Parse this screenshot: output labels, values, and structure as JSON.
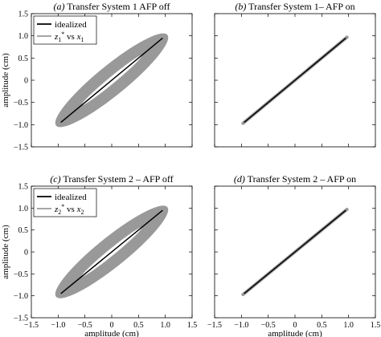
{
  "chart_data": [
    {
      "type": "scatter",
      "title_prefix": "(a)",
      "title": "Transfer System 1  AFP off",
      "xlabel": "",
      "ylabel": "amplitude (cm)",
      "xlim": [
        -1.5,
        1.5
      ],
      "ylim": [
        -1.5,
        1.5
      ],
      "xticks": [],
      "yticks": [
        "−1.5",
        "−1.0",
        "−0.5",
        "0",
        "0.5",
        "1.0",
        "1.5"
      ],
      "legend": {
        "position": "top-left",
        "entries": [
          {
            "label": "idealized",
            "color": "#000000"
          },
          {
            "label": "z1* vs x1",
            "color": "#999999"
          }
        ]
      },
      "series": [
        {
          "name": "idealized",
          "style": "line",
          "x": [
            -0.95,
            0.95
          ],
          "y": [
            -0.95,
            0.95
          ]
        },
        {
          "name": "z1* vs x1",
          "style": "ellipse-band",
          "center": [
            0,
            0
          ],
          "major_axis_angle_deg": 45,
          "x_extent": [
            -1.0,
            1.05
          ],
          "y_extent": [
            -1.0,
            1.05
          ],
          "outer_half_width": 0.3,
          "inner_half_width": 0.07
        }
      ]
    },
    {
      "type": "scatter",
      "title_prefix": "(b)",
      "title": "Transfer System 1– AFP on",
      "xlabel": "",
      "ylabel": "",
      "xlim": [
        -1.5,
        1.5
      ],
      "ylim": [
        -1.5,
        1.5
      ],
      "xticks": [],
      "yticks": [],
      "series": [
        {
          "name": "idealized",
          "style": "line",
          "x": [
            -0.95,
            0.95
          ],
          "y": [
            -0.95,
            0.95
          ]
        },
        {
          "name": "z1* vs x1",
          "style": "narrow-band",
          "x": [
            -0.97,
            0.97
          ],
          "y": [
            -0.97,
            0.97
          ],
          "half_width": 0.02
        }
      ]
    },
    {
      "type": "scatter",
      "title_prefix": "(c)",
      "title": "Transfer System 2 – AFP off",
      "xlabel": "amplitude (cm)",
      "ylabel": "amplitude (cm)",
      "xlim": [
        -1.5,
        1.5
      ],
      "ylim": [
        -1.5,
        1.5
      ],
      "xticks": [
        "−1.5",
        "−1.0",
        "−0.5",
        "0",
        "0.5",
        "1.0",
        "1.5"
      ],
      "yticks": [
        "−1.5",
        "−1.0",
        "−0.5",
        "0",
        "0.5",
        "1.0",
        "1.5"
      ],
      "legend": {
        "position": "top-left",
        "entries": [
          {
            "label": "idealized",
            "color": "#000000"
          },
          {
            "label": "z2* vs x2",
            "color": "#999999"
          }
        ]
      },
      "series": [
        {
          "name": "idealized",
          "style": "line",
          "x": [
            -0.95,
            0.95
          ],
          "y": [
            -0.95,
            0.95
          ]
        },
        {
          "name": "z2* vs x2",
          "style": "ellipse-band",
          "center": [
            0,
            0
          ],
          "major_axis_angle_deg": 45,
          "x_extent": [
            -1.0,
            1.05
          ],
          "y_extent": [
            -1.0,
            1.05
          ],
          "outer_half_width": 0.3,
          "inner_half_width": 0.07
        }
      ]
    },
    {
      "type": "scatter",
      "title_prefix": "(d)",
      "title": "Transfer System 2 – AFP on",
      "xlabel": "amplitude (cm)",
      "ylabel": "",
      "xlim": [
        -1.5,
        1.5
      ],
      "ylim": [
        -1.5,
        1.5
      ],
      "xticks": [
        "−1.5",
        "−1.0",
        "−0.5",
        "0",
        "0.5",
        "1.0",
        "1.5"
      ],
      "yticks": [],
      "series": [
        {
          "name": "idealized",
          "style": "line",
          "x": [
            -0.95,
            0.95
          ],
          "y": [
            -0.95,
            0.95
          ]
        },
        {
          "name": "z2* vs x2",
          "style": "narrow-band",
          "x": [
            -0.97,
            0.97
          ],
          "y": [
            -0.97,
            0.97
          ],
          "half_width": 0.02
        }
      ]
    }
  ],
  "colors": {
    "band": "#999999",
    "ideal": "#000000"
  }
}
